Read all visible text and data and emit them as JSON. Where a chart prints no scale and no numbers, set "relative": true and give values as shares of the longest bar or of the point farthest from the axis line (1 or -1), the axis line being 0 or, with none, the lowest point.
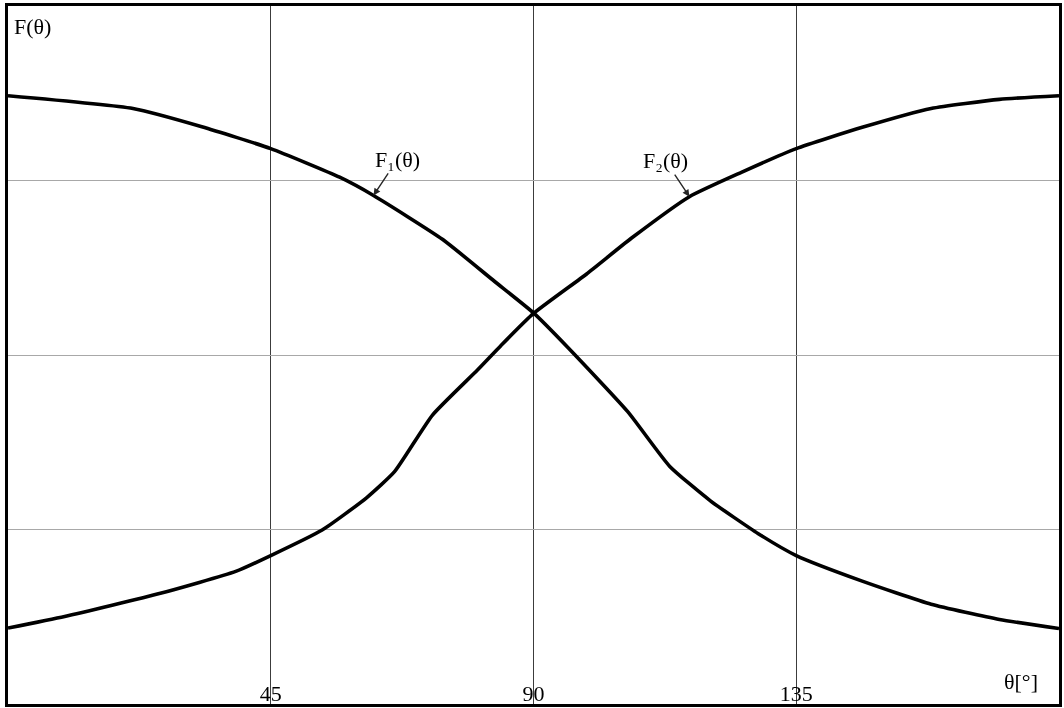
{
  "chart_data": {
    "type": "line",
    "xlabel": "θ[°]",
    "ylabel": "F(θ)",
    "xlim": [
      0,
      180
    ],
    "xticks": [
      45,
      90,
      135
    ],
    "relative": true,
    "grid": true,
    "tick_labels": "x",
    "series": [
      {
        "name": "F₁(θ)",
        "color": "#000000",
        "x": [
          0,
          21.4,
          33.2,
          45,
          56.8,
          62.6,
          74.4,
          83.3,
          90,
          95.6,
          106.1,
          113.3,
          120.3,
          128.5,
          135,
          146.3,
          158.1,
          169.8,
          180
        ],
        "values": [
          1.0,
          0.979,
          0.949,
          0.913,
          0.866,
          0.836,
          0.764,
          0.695,
          0.643,
          0.589,
          0.481,
          0.391,
          0.334,
          0.28,
          0.244,
          0.202,
          0.164,
          0.139,
          0.124
        ]
      },
      {
        "name": "F₂(θ)",
        "color": "#000000",
        "x": [
          0,
          9.7,
          26.1,
          39,
          45,
          53.8,
          61.4,
          66.2,
          72.7,
          80.4,
          84.4,
          90,
          99.1,
          106.8,
          116.7,
          125.6,
          135,
          146.3,
          158.1,
          169.8,
          180
        ],
        "values": [
          0.125,
          0.144,
          0.182,
          0.218,
          0.244,
          0.286,
          0.339,
          0.382,
          0.475,
          0.549,
          0.589,
          0.642,
          0.707,
          0.766,
          0.834,
          0.874,
          0.913,
          0.948,
          0.979,
          0.994,
          1.0
        ]
      }
    ]
  }
}
